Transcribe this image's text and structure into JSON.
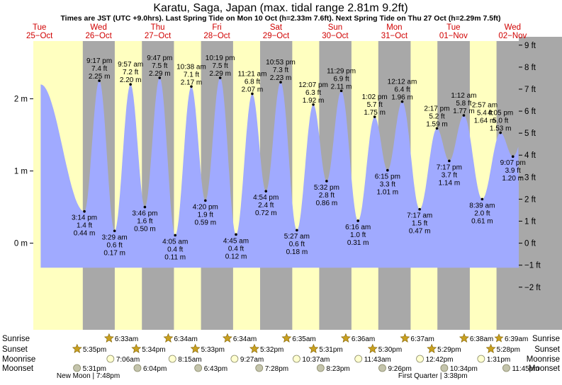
{
  "header": {
    "title": "Karatu, Saga, Japan (max. tidal range 2.81m 9.2ft)",
    "subtitle": "Times are JST (UTC +9.0hrs). Last Spring Tide on Mon 10 Oct (h=2.33m 7.6ft). Next Spring Tide on Thu 27 Oct (h=2.29m 7.5ft)"
  },
  "colors": {
    "day": "#ffffc0",
    "night": "#a8a8a8",
    "tide_fill": "#a0aaff",
    "dayname": "#d00000",
    "text": "#000000",
    "moon_rise": "#ffffd0",
    "moon_set": "#c4c4ac",
    "sun_icon": "#c8a020"
  },
  "chart_data": {
    "type": "area",
    "title": "Karatu, Saga, Japan (max. tidal range 2.81m 9.2ft)",
    "x_unit": "hours after 00:00 Tue 25-Oct (JST)",
    "xlim": [
      -2.5,
      194.5
    ],
    "y_left_label": "m",
    "ylim_m": [
      -1.2,
      2.8
    ],
    "y_left_ticks": [
      {
        "v": 0,
        "label": "0 m"
      },
      {
        "v": 1,
        "label": "1 m"
      },
      {
        "v": 2,
        "label": "2 m"
      }
    ],
    "y_right_ticks": [
      {
        "ft": 9,
        "label": "9 ft"
      },
      {
        "ft": 8,
        "label": "8 ft"
      },
      {
        "ft": 7,
        "label": "7 ft"
      },
      {
        "ft": 6,
        "label": "6 ft"
      },
      {
        "ft": 5,
        "label": "5 ft"
      },
      {
        "ft": 4,
        "label": "4 ft"
      },
      {
        "ft": 3,
        "label": "3 ft"
      },
      {
        "ft": 2,
        "label": "2 ft"
      },
      {
        "ft": 1,
        "label": "1 ft"
      },
      {
        "ft": 0,
        "label": "0 ft"
      },
      {
        "ft": -1,
        "label": "−1 ft"
      },
      {
        "ft": -2,
        "label": "−2 ft"
      }
    ],
    "start_level_m": 2.2,
    "end_level_m": 0.76,
    "days": [
      {
        "name": "Tue",
        "date": "25−Oct",
        "hour": 0
      },
      {
        "name": "Wed",
        "date": "26−Oct",
        "hour": 24
      },
      {
        "name": "Thu",
        "date": "27−Oct",
        "hour": 48
      },
      {
        "name": "Fri",
        "date": "28−Oct",
        "hour": 72
      },
      {
        "name": "Sat",
        "date": "29−Oct",
        "hour": 96
      },
      {
        "name": "Sun",
        "date": "30−Oct",
        "hour": 120
      },
      {
        "name": "Mon",
        "date": "31−Oct",
        "hour": 144
      },
      {
        "name": "Tue",
        "date": "01−Nov",
        "hour": 168
      },
      {
        "name": "Wed",
        "date": "02−Nov",
        "hour": 192
      }
    ],
    "nights": [
      {
        "from": 17.58,
        "to": 30.55
      },
      {
        "from": 41.57,
        "to": 54.57
      },
      {
        "from": 65.55,
        "to": 78.57
      },
      {
        "from": 89.53,
        "to": 102.58
      },
      {
        "from": 113.52,
        "to": 126.6
      },
      {
        "from": 137.5,
        "to": 150.62
      },
      {
        "from": 161.48,
        "to": 174.63
      },
      {
        "from": 185.47,
        "to": 194.5
      }
    ],
    "tides": [
      {
        "hour": 15.23,
        "m": 0.44,
        "m_label": "0.44 m",
        "ft_label": "1.4 ft",
        "time": "3:14 pm",
        "type": "low"
      },
      {
        "hour": 21.28,
        "m": 2.25,
        "m_label": "2.25 m",
        "ft_label": "7.4 ft",
        "time": "9:17 pm",
        "type": "high"
      },
      {
        "hour": 27.48,
        "m": 0.17,
        "m_label": "0.17 m",
        "ft_label": "0.6 ft",
        "time": "3:29 am",
        "type": "low"
      },
      {
        "hour": 33.95,
        "m": 2.2,
        "m_label": "2.20 m",
        "ft_label": "7.2 ft",
        "time": "9:57 am",
        "type": "high"
      },
      {
        "hour": 39.77,
        "m": 0.5,
        "m_label": "0.50 m",
        "ft_label": "1.6 ft",
        "time": "3:46 pm",
        "type": "low"
      },
      {
        "hour": 45.78,
        "m": 2.29,
        "m_label": "2.29 m",
        "ft_label": "7.5 ft",
        "time": "9:47 pm",
        "type": "high"
      },
      {
        "hour": 52.08,
        "m": 0.11,
        "m_label": "0.11 m",
        "ft_label": "0.4 ft",
        "time": "4:05 am",
        "type": "low"
      },
      {
        "hour": 58.63,
        "m": 2.17,
        "m_label": "2.17 m",
        "ft_label": "7.1 ft",
        "time": "10:38 am",
        "type": "high"
      },
      {
        "hour": 64.33,
        "m": 0.59,
        "m_label": "0.59 m",
        "ft_label": "1.9 ft",
        "time": "4:20 pm",
        "type": "low"
      },
      {
        "hour": 70.32,
        "m": 2.29,
        "m_label": "2.29 m",
        "ft_label": "7.5 ft",
        "time": "10:19 pm",
        "type": "high"
      },
      {
        "hour": 76.75,
        "m": 0.12,
        "m_label": "0.12 m",
        "ft_label": "0.4 ft",
        "time": "4:45 am",
        "type": "low"
      },
      {
        "hour": 83.35,
        "m": 2.07,
        "m_label": "2.07 m",
        "ft_label": "6.8 ft",
        "time": "11:21 am",
        "type": "high"
      },
      {
        "hour": 88.9,
        "m": 0.72,
        "m_label": "0.72 m",
        "ft_label": "2.4 ft",
        "time": "4:54 pm",
        "type": "low"
      },
      {
        "hour": 94.88,
        "m": 2.23,
        "m_label": "2.23 m",
        "ft_label": "7.3 ft",
        "time": "10:53 pm",
        "type": "high"
      },
      {
        "hour": 101.45,
        "m": 0.18,
        "m_label": "0.18 m",
        "ft_label": "0.6 ft",
        "time": "5:27 am",
        "type": "low"
      },
      {
        "hour": 108.12,
        "m": 1.92,
        "m_label": "1.92 m",
        "ft_label": "6.3 ft",
        "time": "12:07 pm",
        "type": "high"
      },
      {
        "hour": 113.53,
        "m": 0.86,
        "m_label": "0.86 m",
        "ft_label": "2.8 ft",
        "time": "5:32 pm",
        "type": "low"
      },
      {
        "hour": 119.48,
        "m": 2.11,
        "m_label": "2.11 m",
        "ft_label": "6.9 ft",
        "time": "11:29 pm",
        "type": "high"
      },
      {
        "hour": 126.27,
        "m": 0.31,
        "m_label": "0.31 m",
        "ft_label": "1.0 ft",
        "time": "6:16 am",
        "type": "low"
      },
      {
        "hour": 133.03,
        "m": 1.75,
        "m_label": "1.75 m",
        "ft_label": "5.7 ft",
        "time": "1:02 pm",
        "type": "high"
      },
      {
        "hour": 138.25,
        "m": 1.01,
        "m_label": "1.01 m",
        "ft_label": "3.3 ft",
        "time": "6:15 pm",
        "type": "low"
      },
      {
        "hour": 144.2,
        "m": 1.96,
        "m_label": "1.96 m",
        "ft_label": "6.4 ft",
        "time": "12:12 am",
        "type": "high"
      },
      {
        "hour": 151.28,
        "m": 0.47,
        "m_label": "0.47 m",
        "ft_label": "1.5 ft",
        "time": "7:17 am",
        "type": "low"
      },
      {
        "hour": 158.28,
        "m": 1.59,
        "m_label": "1.59 m",
        "ft_label": "5.2 ft",
        "time": "2:17 pm",
        "type": "high"
      },
      {
        "hour": 163.28,
        "m": 1.14,
        "m_label": "1.14 m",
        "ft_label": "3.7 ft",
        "time": "7:17 pm",
        "type": "low"
      },
      {
        "hour": 169.2,
        "m": 1.77,
        "m_label": "1.77 m",
        "ft_label": "5.8 ft",
        "time": "1:12 am",
        "type": "high"
      },
      {
        "hour": 176.65,
        "m": 0.61,
        "m_label": "0.61 m",
        "ft_label": "2.0 ft",
        "time": "8:39 am",
        "type": "low"
      },
      {
        "hour": 184.08,
        "m": 1.53,
        "m_label": "1.53 m",
        "ft_label": "5.0 ft",
        "time": "4:05 pm",
        "type": "high"
      },
      {
        "hour": 189.12,
        "m": 1.2,
        "m_label": "1.20 m",
        "ft_label": "3.9 ft",
        "time": "9:07 pm",
        "type": "low"
      },
      {
        "hour": 194.95,
        "m": 1.64,
        "m_label": "1.64 m",
        "ft_label": "5.4 ft",
        "time": "2:57 am",
        "type": "high"
      }
    ]
  },
  "astro": {
    "row_labels": [
      "Sunrise",
      "Sunset",
      "Moonrise",
      "Moonset"
    ],
    "sunrise": [
      {
        "hour": 30.55,
        "time": "6:33am"
      },
      {
        "hour": 54.57,
        "time": "6:34am"
      },
      {
        "hour": 78.57,
        "time": "6:34am"
      },
      {
        "hour": 102.58,
        "time": "6:35am"
      },
      {
        "hour": 126.6,
        "time": "6:36am"
      },
      {
        "hour": 150.62,
        "time": "6:37am"
      },
      {
        "hour": 174.63,
        "time": "6:38am"
      },
      {
        "hour": 198.65,
        "time": "6:39am"
      }
    ],
    "sunset": [
      {
        "hour": 17.58,
        "time": "5:35pm"
      },
      {
        "hour": 41.57,
        "time": "5:34pm"
      },
      {
        "hour": 65.55,
        "time": "5:33pm"
      },
      {
        "hour": 89.53,
        "time": "5:32pm"
      },
      {
        "hour": 113.52,
        "time": "5:31pm"
      },
      {
        "hour": 137.5,
        "time": "5:30pm"
      },
      {
        "hour": 161.48,
        "time": "5:29pm"
      },
      {
        "hour": 185.47,
        "time": "5:28pm"
      }
    ],
    "moonrise": [
      {
        "hour": 31.1,
        "time": "7:06am"
      },
      {
        "hour": 56.25,
        "time": "8:15am"
      },
      {
        "hour": 81.45,
        "time": "9:27am"
      },
      {
        "hour": 106.62,
        "time": "10:37am"
      },
      {
        "hour": 131.72,
        "time": "11:43am"
      },
      {
        "hour": 156.7,
        "time": "12:42pm"
      },
      {
        "hour": 181.52,
        "time": "1:31pm"
      }
    ],
    "moonset": [
      {
        "hour": 17.52,
        "time": "5:31pm"
      },
      {
        "hour": 42.07,
        "time": "6:04pm"
      },
      {
        "hour": 66.72,
        "time": "6:43pm"
      },
      {
        "hour": 91.47,
        "time": "7:28pm"
      },
      {
        "hour": 116.38,
        "time": "8:23pm"
      },
      {
        "hour": 141.43,
        "time": "9:26pm"
      },
      {
        "hour": 166.57,
        "time": "10:34pm"
      },
      {
        "hour": 191.75,
        "time": "11:45pm"
      }
    ],
    "moon_phases": [
      {
        "hour": 19.8,
        "label": "New Moon | 7:48pm"
      },
      {
        "hour": 159.63,
        "label": "First Quarter | 3:38pm"
      }
    ]
  }
}
